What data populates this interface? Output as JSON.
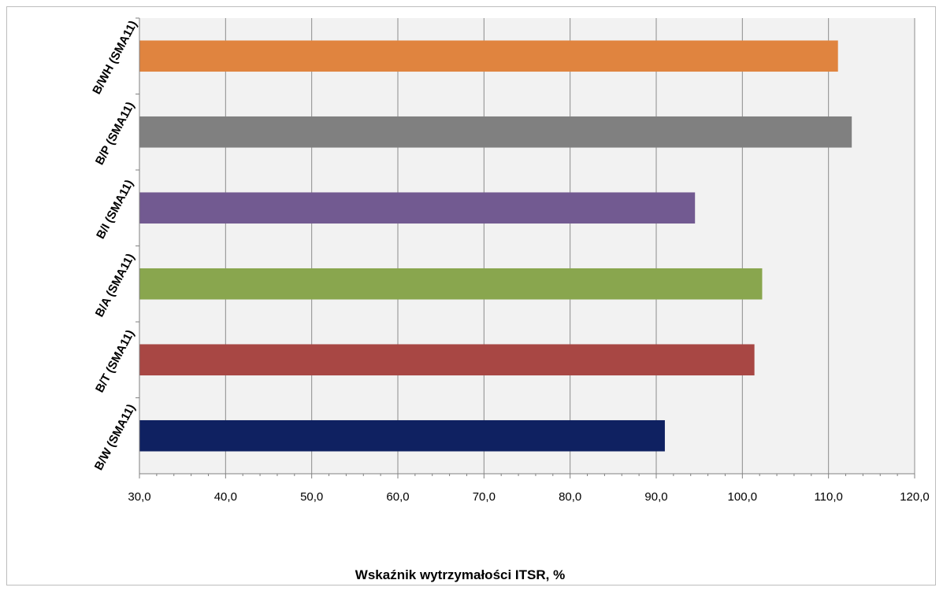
{
  "chart_data": {
    "type": "bar",
    "orientation": "horizontal",
    "title": "",
    "xlabel": "Wskaźnik wytrzymałości ITSR, %",
    "ylabel": "",
    "xlim": [
      30.0,
      120.0
    ],
    "xtick_values": [
      30,
      40,
      50,
      60,
      70,
      80,
      90,
      100,
      110,
      120
    ],
    "xtick_labels": [
      "30,0",
      "40,0",
      "50,0",
      "60,0",
      "70,0",
      "80,0",
      "90,0",
      "100,0",
      "110,0",
      "120,0"
    ],
    "grid": true,
    "legend": "none",
    "plot_background": "#f2f2f2",
    "categories": [
      "B/W (SMA11)",
      "B/T (SMA11)",
      "B/A (SMA11)",
      "B/I (SMA11)",
      "B/P (SMA11)",
      "B/WH (SMA11)"
    ],
    "values": [
      91.0,
      101.4,
      102.3,
      94.5,
      112.7,
      111.1
    ],
    "colors": [
      "#0f2161",
      "#a84744",
      "#89a64e",
      "#725a91",
      "#808080",
      "#e0843f"
    ]
  }
}
